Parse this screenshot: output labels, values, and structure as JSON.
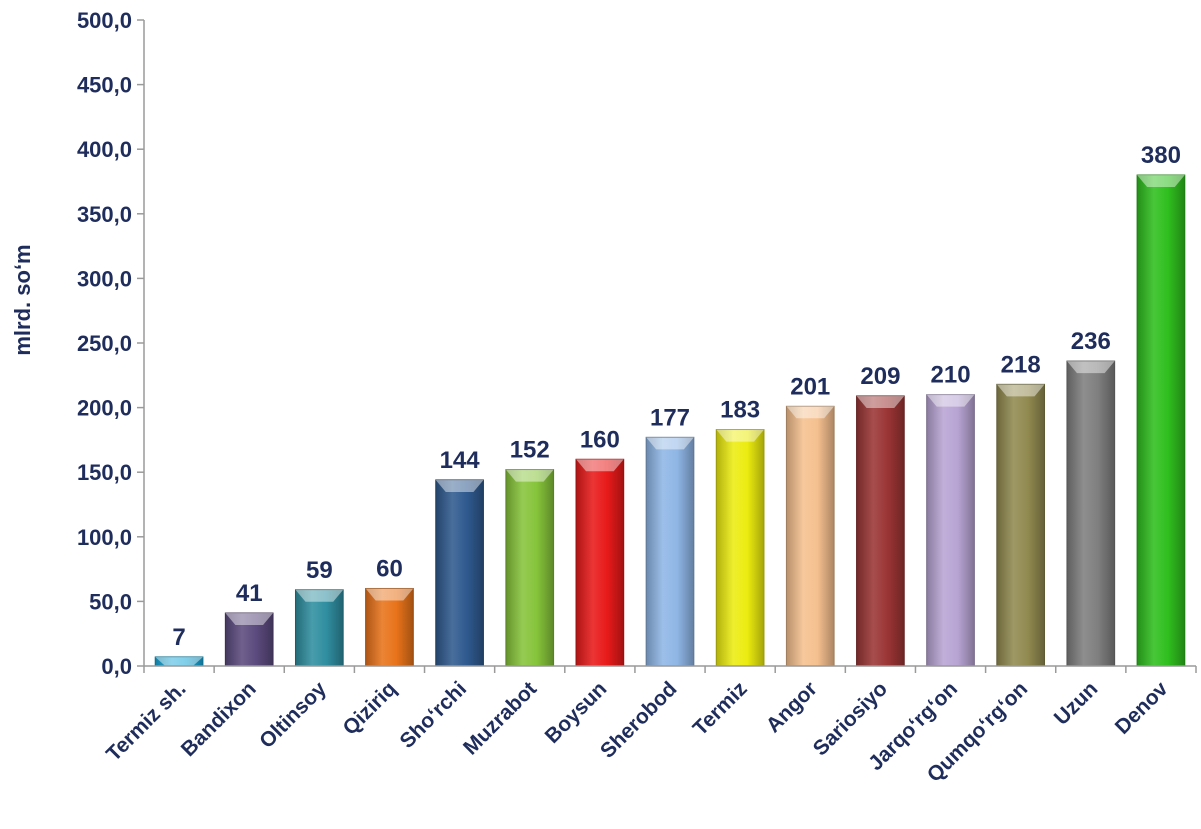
{
  "chart_data": {
    "type": "bar",
    "ylabel": "mlrd. so‘m",
    "ylim": [
      0,
      500
    ],
    "ytick_step": 50,
    "ytick_labels": [
      "0,0",
      "50,0",
      "100,0",
      "150,0",
      "200,0",
      "250,0",
      "300,0",
      "350,0",
      "400,0",
      "450,0",
      "500,0"
    ],
    "categories": [
      "Termiz sh.",
      "Bandixon",
      "Oltinsoy",
      "Qiziriq",
      "Sho‘rchi",
      "Muzrabot",
      "Boysun",
      "Sherobod",
      "Termiz",
      "Angor",
      "Sariosiyo",
      "Jarqo‘rg‘on",
      "Qumqo‘rg‘on",
      "Uzun",
      "Denov"
    ],
    "values": [
      7,
      41,
      59,
      60,
      144,
      152,
      160,
      177,
      183,
      201,
      209,
      210,
      218,
      236,
      380
    ],
    "value_labels": [
      "7",
      "41",
      "59",
      "60",
      "144",
      "152",
      "160",
      "177",
      "183",
      "201",
      "209",
      "210",
      "218",
      "236",
      "380"
    ],
    "colors": [
      "#1aa7d8",
      "#5b4a7e",
      "#2f8ea0",
      "#e8731a",
      "#2f5a8f",
      "#86c43a",
      "#e81a1a",
      "#8fb6e6",
      "#ecec10",
      "#f5c08f",
      "#9b3535",
      "#b8a4d4",
      "#918a50",
      "#7f7f7f",
      "#2fbf1e"
    ],
    "grid": false,
    "legend": "none"
  }
}
